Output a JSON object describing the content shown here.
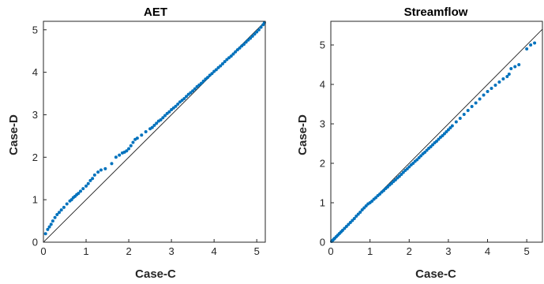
{
  "chart_data": [
    {
      "type": "scatter",
      "title": "AET",
      "xlabel": "Case-C",
      "ylabel": "Case-D",
      "xlim": [
        0,
        5.2
      ],
      "ylim": [
        0,
        5.2
      ],
      "xticks": [
        0,
        1,
        2,
        3,
        4,
        5
      ],
      "yticks": [
        0,
        1,
        2,
        3,
        4,
        5
      ],
      "grid": false,
      "reference_line": "1:1",
      "marker_color": "#0072BD",
      "series": [
        {
          "x": [
            0.05,
            0.1,
            0.14,
            0.18,
            0.22,
            0.27,
            0.32,
            0.37,
            0.42,
            0.48,
            0.55,
            0.62,
            0.66,
            0.7,
            0.74,
            0.78,
            0.82,
            0.87,
            0.93,
            1.0,
            1.05,
            1.1,
            1.15,
            1.2,
            1.28,
            1.35,
            1.45,
            1.6,
            1.7,
            1.78,
            1.85,
            1.9,
            1.95,
            2.0,
            2.05,
            2.1,
            2.15,
            2.2,
            2.3,
            2.4,
            2.5,
            2.55,
            2.6,
            2.65,
            2.7,
            2.75,
            2.8,
            2.85,
            2.9,
            2.95,
            3.0,
            3.05,
            3.1,
            3.15,
            3.2,
            3.25,
            3.3,
            3.35,
            3.4,
            3.45,
            3.5,
            3.55,
            3.6,
            3.65,
            3.7,
            3.75,
            3.8,
            3.85,
            3.9,
            3.95,
            4.0,
            4.05,
            4.1,
            4.15,
            4.2,
            4.25,
            4.3,
            4.35,
            4.4,
            4.45,
            4.5,
            4.55,
            4.6,
            4.65,
            4.7,
            4.75,
            4.8,
            4.85,
            4.9,
            4.95,
            5.0,
            5.05,
            5.1,
            5.15,
            5.18
          ],
          "y": [
            0.2,
            0.3,
            0.36,
            0.42,
            0.5,
            0.58,
            0.65,
            0.7,
            0.76,
            0.82,
            0.9,
            0.97,
            1.0,
            1.05,
            1.08,
            1.12,
            1.15,
            1.2,
            1.26,
            1.32,
            1.38,
            1.45,
            1.5,
            1.58,
            1.65,
            1.7,
            1.73,
            1.85,
            2.0,
            2.05,
            2.1,
            2.12,
            2.15,
            2.2,
            2.27,
            2.35,
            2.42,
            2.45,
            2.52,
            2.6,
            2.67,
            2.7,
            2.75,
            2.8,
            2.85,
            2.88,
            2.93,
            2.98,
            3.03,
            3.07,
            3.12,
            3.16,
            3.2,
            3.25,
            3.3,
            3.34,
            3.38,
            3.43,
            3.48,
            3.52,
            3.56,
            3.61,
            3.66,
            3.7,
            3.74,
            3.79,
            3.84,
            3.88,
            3.93,
            3.97,
            4.02,
            4.06,
            4.11,
            4.15,
            4.2,
            4.25,
            4.3,
            4.34,
            4.38,
            4.43,
            4.48,
            4.53,
            4.57,
            4.62,
            4.66,
            4.71,
            4.76,
            4.8,
            4.85,
            4.9,
            4.95,
            5.0,
            5.06,
            5.12,
            5.17
          ]
        }
      ]
    },
    {
      "type": "scatter",
      "title": "Streamflow",
      "xlabel": "Case-C",
      "ylabel": "Case-D",
      "xlim": [
        0,
        5.4
      ],
      "ylim": [
        0,
        5.6
      ],
      "xticks": [
        0,
        1,
        2,
        3,
        4,
        5
      ],
      "yticks": [
        0,
        1,
        2,
        3,
        4,
        5
      ],
      "grid": false,
      "reference_line": "1:1",
      "marker_color": "#0072BD",
      "series": [
        {
          "x": [
            0.02,
            0.05,
            0.08,
            0.1,
            0.14,
            0.18,
            0.22,
            0.26,
            0.3,
            0.35,
            0.4,
            0.45,
            0.5,
            0.55,
            0.6,
            0.65,
            0.7,
            0.75,
            0.8,
            0.85,
            0.9,
            0.95,
            1.0,
            1.05,
            1.1,
            1.15,
            1.2,
            1.25,
            1.3,
            1.35,
            1.4,
            1.45,
            1.5,
            1.55,
            1.6,
            1.65,
            1.7,
            1.75,
            1.8,
            1.85,
            1.9,
            1.95,
            2.0,
            2.05,
            2.1,
            2.15,
            2.2,
            2.25,
            2.3,
            2.35,
            2.4,
            2.45,
            2.5,
            2.55,
            2.6,
            2.65,
            2.7,
            2.75,
            2.8,
            2.85,
            2.9,
            2.95,
            3.0,
            3.05,
            3.1,
            3.2,
            3.3,
            3.4,
            3.5,
            3.6,
            3.7,
            3.8,
            3.9,
            4.0,
            4.1,
            4.2,
            4.3,
            4.4,
            4.5,
            4.55,
            4.6,
            4.7,
            4.8,
            5.0,
            5.1,
            5.2
          ],
          "y": [
            0.02,
            0.05,
            0.08,
            0.1,
            0.14,
            0.18,
            0.22,
            0.26,
            0.3,
            0.35,
            0.4,
            0.45,
            0.5,
            0.55,
            0.6,
            0.66,
            0.71,
            0.76,
            0.82,
            0.87,
            0.92,
            0.97,
            1.0,
            1.04,
            1.09,
            1.13,
            1.18,
            1.22,
            1.27,
            1.31,
            1.36,
            1.4,
            1.45,
            1.49,
            1.54,
            1.58,
            1.63,
            1.67,
            1.72,
            1.77,
            1.82,
            1.86,
            1.91,
            1.96,
            2.0,
            2.05,
            2.09,
            2.14,
            2.19,
            2.24,
            2.28,
            2.33,
            2.38,
            2.42,
            2.47,
            2.52,
            2.56,
            2.61,
            2.66,
            2.7,
            2.75,
            2.8,
            2.85,
            2.9,
            2.95,
            3.05,
            3.14,
            3.24,
            3.34,
            3.44,
            3.53,
            3.63,
            3.73,
            3.82,
            3.9,
            3.98,
            4.06,
            4.14,
            4.2,
            4.26,
            4.4,
            4.45,
            4.5,
            4.9,
            5.0,
            5.05
          ]
        }
      ]
    }
  ]
}
